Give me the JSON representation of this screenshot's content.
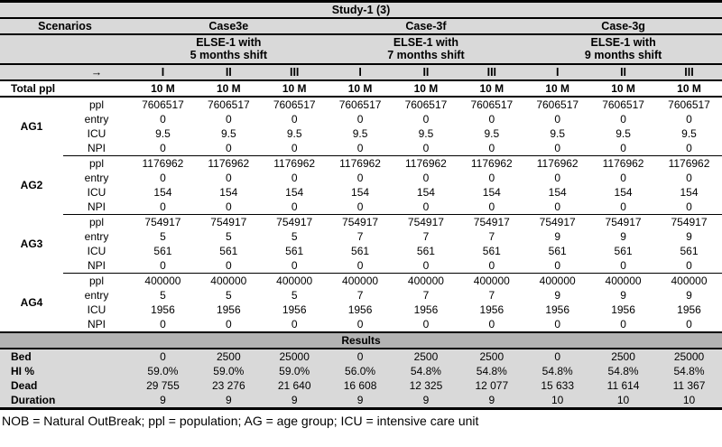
{
  "title": "Study-1 (3)",
  "header": {
    "scenarios_label": "Scenarios",
    "arrow": "→",
    "cases": [
      {
        "name": "Case3e",
        "sub1": "ELSE-1 with",
        "sub2": "5 months shift"
      },
      {
        "name": "Case-3f",
        "sub1": "ELSE-1 with",
        "sub2": "7 months shift"
      },
      {
        "name": "Case-3g",
        "sub1": "ELSE-1 with",
        "sub2": "9 months shift"
      }
    ],
    "col_numerals": [
      "I",
      "II",
      "III",
      "I",
      "II",
      "III",
      "I",
      "II",
      "III"
    ]
  },
  "total_ppl": {
    "label": "Total ppl",
    "values": [
      "10 M",
      "10 M",
      "10 M",
      "10 M",
      "10 M",
      "10 M",
      "10 M",
      "10 M",
      "10 M"
    ]
  },
  "age_groups": [
    {
      "label": "AG1",
      "rows": [
        {
          "label": "ppl",
          "values": [
            "7606517",
            "7606517",
            "7606517",
            "7606517",
            "7606517",
            "7606517",
            "7606517",
            "7606517",
            "7606517"
          ]
        },
        {
          "label": "entry",
          "values": [
            "0",
            "0",
            "0",
            "0",
            "0",
            "0",
            "0",
            "0",
            "0"
          ]
        },
        {
          "label": "ICU",
          "values": [
            "9.5",
            "9.5",
            "9.5",
            "9.5",
            "9.5",
            "9.5",
            "9.5",
            "9.5",
            "9.5"
          ]
        },
        {
          "label": "NPI",
          "values": [
            "0",
            "0",
            "0",
            "0",
            "0",
            "0",
            "0",
            "0",
            "0"
          ]
        }
      ]
    },
    {
      "label": "AG2",
      "rows": [
        {
          "label": "ppl",
          "values": [
            "1176962",
            "1176962",
            "1176962",
            "1176962",
            "1176962",
            "1176962",
            "1176962",
            "1176962",
            "1176962"
          ]
        },
        {
          "label": "entry",
          "values": [
            "0",
            "0",
            "0",
            "0",
            "0",
            "0",
            "0",
            "0",
            "0"
          ]
        },
        {
          "label": "ICU",
          "values": [
            "154",
            "154",
            "154",
            "154",
            "154",
            "154",
            "154",
            "154",
            "154"
          ]
        },
        {
          "label": "NPI",
          "values": [
            "0",
            "0",
            "0",
            "0",
            "0",
            "0",
            "0",
            "0",
            "0"
          ]
        }
      ]
    },
    {
      "label": "AG3",
      "rows": [
        {
          "label": "ppl",
          "values": [
            "754917",
            "754917",
            "754917",
            "754917",
            "754917",
            "754917",
            "754917",
            "754917",
            "754917"
          ]
        },
        {
          "label": "entry",
          "values": [
            "5",
            "5",
            "5",
            "7",
            "7",
            "7",
            "9",
            "9",
            "9"
          ]
        },
        {
          "label": "ICU",
          "values": [
            "561",
            "561",
            "561",
            "561",
            "561",
            "561",
            "561",
            "561",
            "561"
          ]
        },
        {
          "label": "NPI",
          "values": [
            "0",
            "0",
            "0",
            "0",
            "0",
            "0",
            "0",
            "0",
            "0"
          ]
        }
      ]
    },
    {
      "label": "AG4",
      "rows": [
        {
          "label": "ppl",
          "values": [
            "400000",
            "400000",
            "400000",
            "400000",
            "400000",
            "400000",
            "400000",
            "400000",
            "400000"
          ]
        },
        {
          "label": "entry",
          "values": [
            "5",
            "5",
            "5",
            "7",
            "7",
            "7",
            "9",
            "9",
            "9"
          ]
        },
        {
          "label": "ICU",
          "values": [
            "1956",
            "1956",
            "1956",
            "1956",
            "1956",
            "1956",
            "1956",
            "1956",
            "1956"
          ]
        },
        {
          "label": "NPI",
          "values": [
            "0",
            "0",
            "0",
            "0",
            "0",
            "0",
            "0",
            "0",
            "0"
          ]
        }
      ]
    }
  ],
  "results": {
    "label": "Results",
    "rows": [
      {
        "label": "Bed",
        "values": [
          "0",
          "2500",
          "25000",
          "0",
          "2500",
          "2500",
          "0",
          "2500",
          "25000"
        ]
      },
      {
        "label": "HI %",
        "values": [
          "59.0%",
          "59.0%",
          "59.0%",
          "56.0%",
          "54.8%",
          "54.8%",
          "54.8%",
          "54.8%",
          "54.8%"
        ]
      },
      {
        "label": "Dead",
        "values": [
          "29 755",
          "23 276",
          "21 640",
          "16 608",
          "12 325",
          "12 077",
          "15 633",
          "11 614",
          "11 367"
        ]
      },
      {
        "label": "Duration",
        "values": [
          "9",
          "9",
          "9",
          "9",
          "9",
          "9",
          "10",
          "10",
          "10"
        ]
      }
    ]
  },
  "footnote": "NOB = Natural OutBreak; ppl = population; AG = age group; ICU = intensive care unit",
  "colors": {
    "header_bg": "#d9d9d9",
    "results_header_bg": "#b3b3b3",
    "results_row_bg": "#d9d9d9",
    "border": "#000000",
    "text": "#000000"
  }
}
